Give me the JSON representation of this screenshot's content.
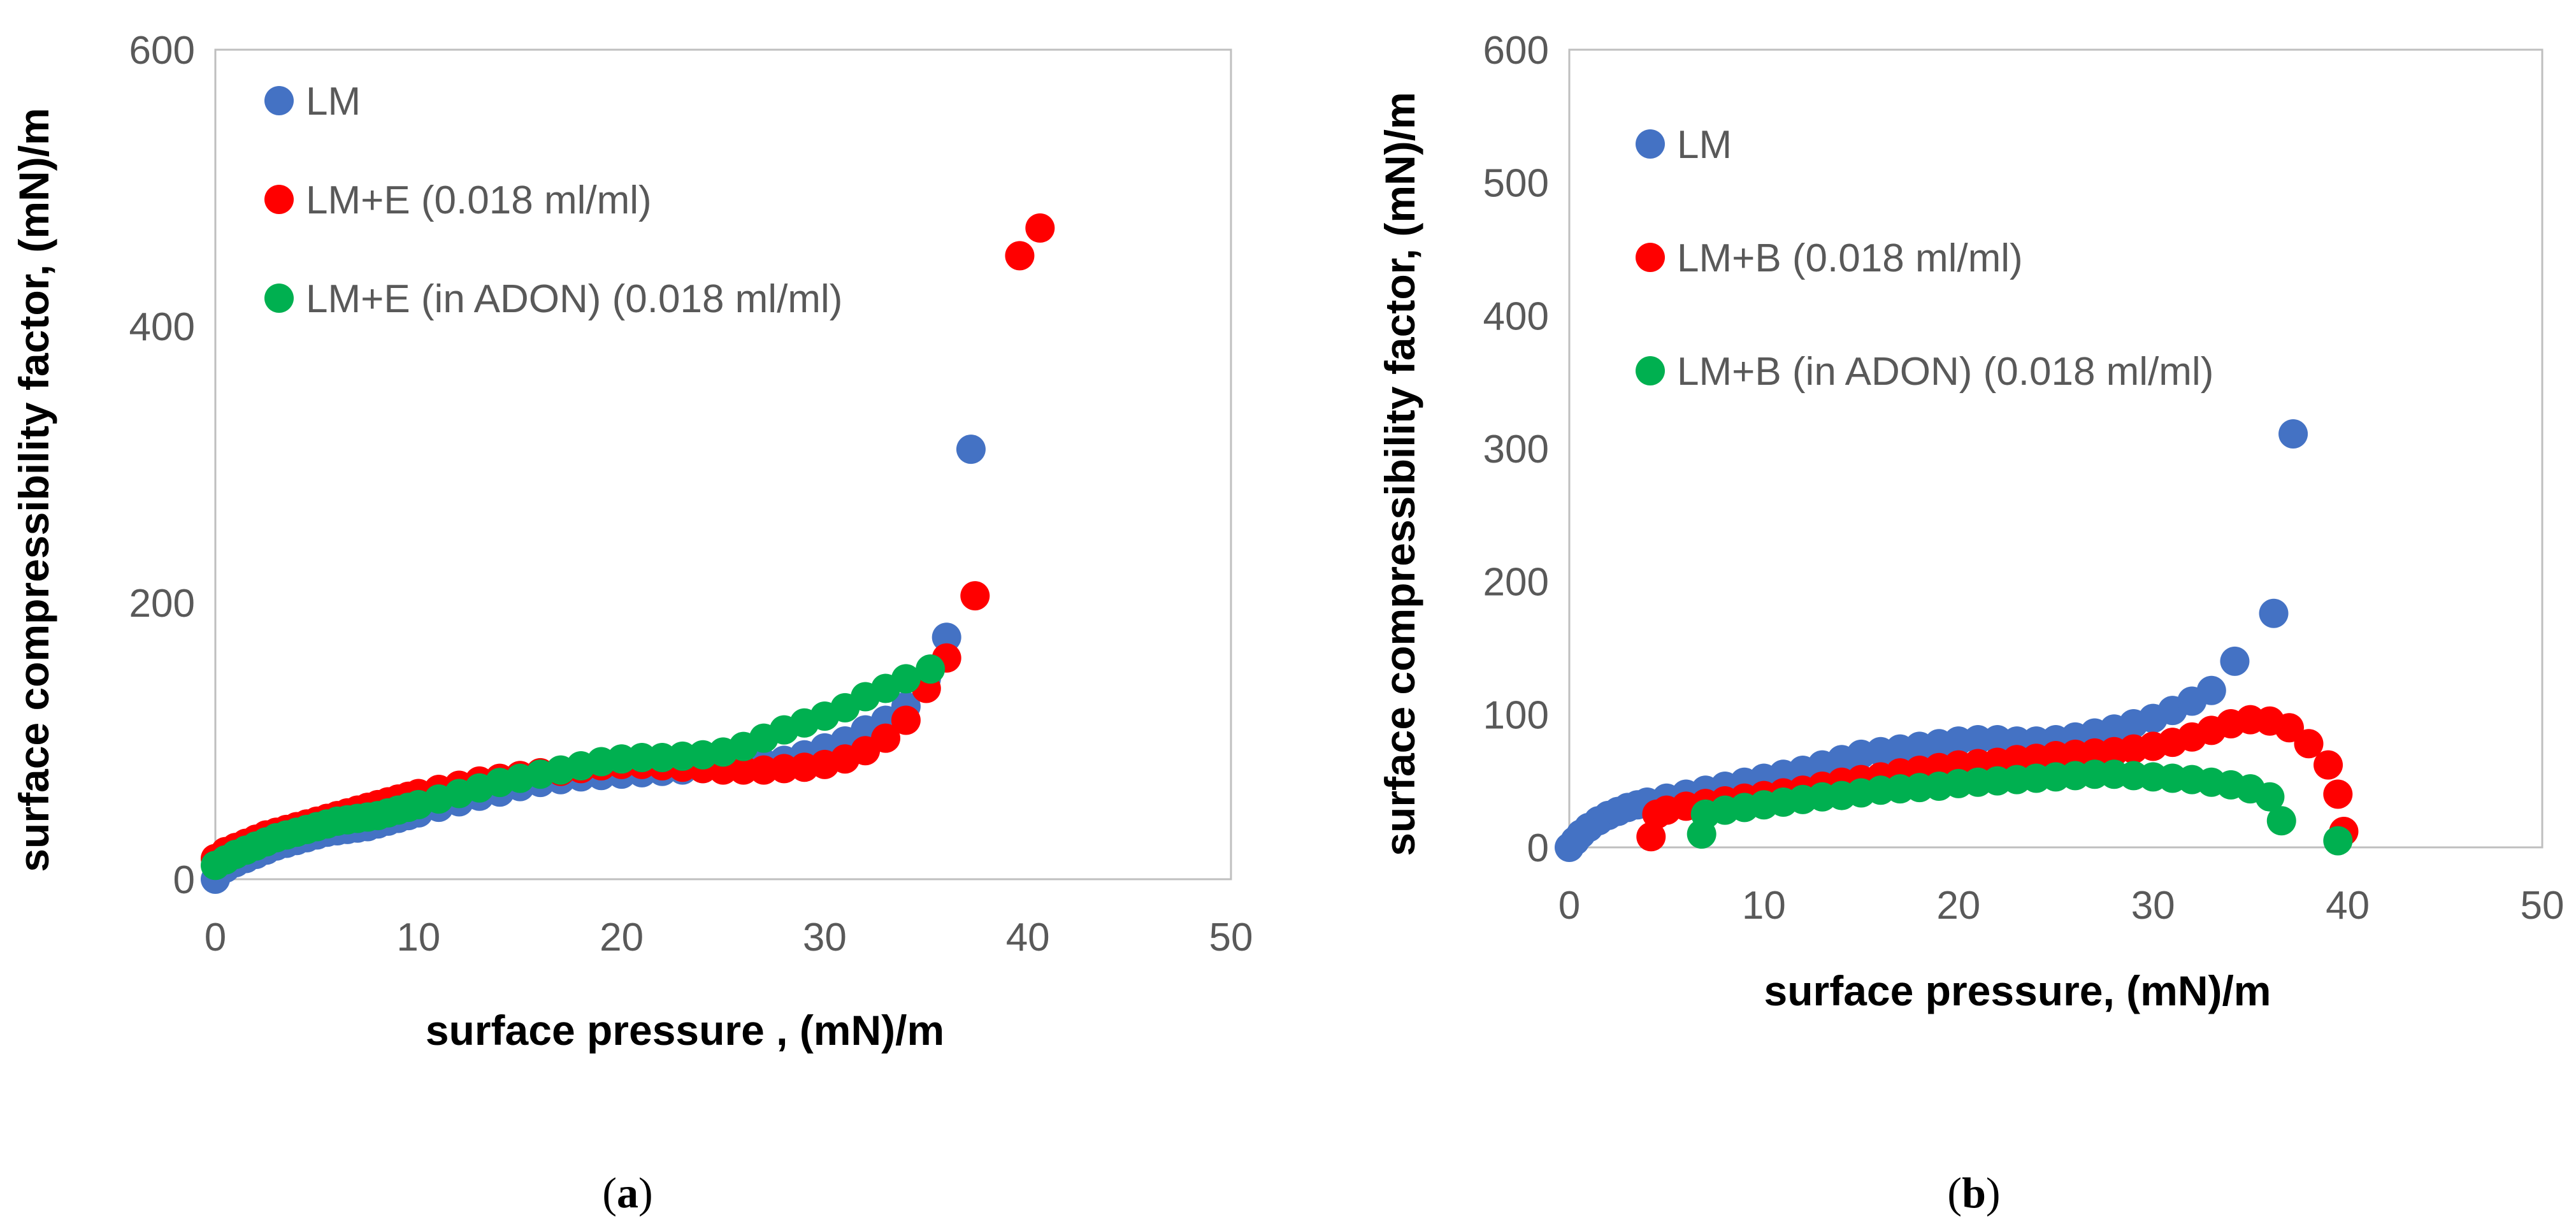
{
  "chart_data": [
    {
      "type": "scatter",
      "panel": "a",
      "caption": "a",
      "xlabel": "surface pressure , (mN)/m",
      "ylabel": "surface compressibility factor, (mN)/m",
      "xlim": [
        0,
        50
      ],
      "ylim": [
        0,
        600
      ],
      "xticks": [
        0,
        10,
        20,
        30,
        40,
        50
      ],
      "yticks": [
        0,
        200,
        400,
        600
      ],
      "legend_position": "top-left",
      "grid": false,
      "series": [
        {
          "name": "LM",
          "color": "#4472C4",
          "x": [
            0,
            0.5,
            1,
            1.5,
            2,
            2.5,
            3,
            3.5,
            4,
            4.5,
            5,
            5.5,
            6,
            6.5,
            7,
            7.5,
            8,
            8.5,
            9,
            9.5,
            10,
            11,
            12,
            13,
            14,
            15,
            16,
            17,
            18,
            19,
            20,
            21,
            22,
            23,
            24,
            25,
            26,
            27,
            28,
            29,
            30,
            31,
            32,
            33,
            34,
            35,
            36,
            37.2
          ],
          "y": [
            0,
            8,
            12,
            15,
            18,
            21,
            24,
            26,
            28,
            30,
            32,
            34,
            35,
            36,
            37,
            38,
            40,
            42,
            44,
            46,
            48,
            52,
            56,
            60,
            63,
            67,
            70,
            72,
            74,
            75,
            76,
            77,
            78,
            79,
            80,
            81,
            82,
            84,
            86,
            90,
            95,
            100,
            108,
            115,
            125,
            145,
            175,
            311
          ]
        },
        {
          "name": "LM+E (0.018 ml/ml)",
          "color": "#FF0000",
          "x": [
            0,
            0.5,
            1,
            1.5,
            2,
            2.5,
            3,
            3.5,
            4,
            4.5,
            5,
            5.5,
            6,
            6.5,
            7,
            7.5,
            8,
            8.5,
            9,
            9.5,
            10,
            11,
            12,
            13,
            14,
            15,
            16,
            17,
            18,
            19,
            20,
            21,
            22,
            23,
            24,
            25,
            26,
            27,
            28,
            29,
            30,
            31,
            32,
            33,
            34,
            35,
            36,
            37.4,
            39.6,
            40.6
          ],
          "y": [
            15,
            20,
            23,
            26,
            29,
            32,
            34,
            36,
            38,
            40,
            42,
            44,
            46,
            48,
            50,
            52,
            54,
            56,
            58,
            60,
            62,
            65,
            68,
            71,
            73,
            75,
            77,
            78,
            80,
            82,
            83,
            83,
            82,
            81,
            80,
            79,
            79,
            79,
            80,
            81,
            83,
            87,
            93,
            102,
            115,
            138,
            160,
            205,
            451,
            471
          ]
        },
        {
          "name": "LM+E (in ADON) (0.018 ml/ml)",
          "color": "#00B050",
          "x": [
            0,
            0.5,
            1,
            1.5,
            2,
            2.5,
            3,
            3.5,
            4,
            4.5,
            5,
            5.5,
            6,
            6.5,
            7,
            7.5,
            8,
            8.5,
            9,
            9.5,
            10,
            11,
            12,
            13,
            14,
            15,
            16,
            17,
            18,
            19,
            20,
            21,
            22,
            23,
            24,
            25,
            26,
            27,
            28,
            29,
            30,
            31,
            32,
            33,
            34,
            35.2
          ],
          "y": [
            10,
            14,
            18,
            21,
            24,
            27,
            30,
            32,
            34,
            36,
            38,
            40,
            42,
            43,
            44,
            45,
            46,
            48,
            50,
            52,
            54,
            58,
            62,
            66,
            70,
            73,
            76,
            79,
            82,
            85,
            87,
            88,
            88,
            89,
            90,
            92,
            96,
            102,
            108,
            113,
            118,
            124,
            132,
            138,
            145,
            152
          ]
        }
      ]
    },
    {
      "type": "scatter",
      "panel": "b",
      "caption": "b",
      "xlabel": "surface pressure, (mN)/m",
      "ylabel": "surface compressibility factor, (mN)/m",
      "xlim": [
        0,
        50
      ],
      "ylim": [
        0,
        600
      ],
      "xticks": [
        0,
        10,
        20,
        30,
        40,
        50
      ],
      "yticks": [
        0,
        100,
        200,
        300,
        400,
        500,
        600
      ],
      "legend_position": "top-left",
      "grid": false,
      "series": [
        {
          "name": "LM",
          "color": "#4472C4",
          "x": [
            0,
            0.3,
            0.6,
            1,
            1.5,
            2,
            2.5,
            3,
            3.5,
            4,
            5,
            6,
            7,
            8,
            9,
            10,
            11,
            12,
            13,
            14,
            15,
            16,
            17,
            18,
            19,
            20,
            21,
            22,
            23,
            24,
            25,
            26,
            27,
            28,
            29,
            30,
            31,
            32,
            33,
            34.2,
            36.2,
            37.2
          ],
          "y": [
            0,
            5,
            10,
            15,
            20,
            24,
            27,
            30,
            32,
            34,
            37,
            40,
            43,
            46,
            49,
            52,
            55,
            58,
            62,
            66,
            70,
            72,
            74,
            76,
            78,
            80,
            81,
            81,
            80,
            80,
            81,
            83,
            86,
            89,
            93,
            97,
            103,
            110,
            118,
            140,
            176,
            311
          ]
        },
        {
          "name": "LM+B (0.018 ml/ml)",
          "color": "#FF0000",
          "x": [
            4.2,
            4.5,
            5,
            6,
            7,
            8,
            9,
            10,
            11,
            12,
            13,
            14,
            15,
            16,
            17,
            18,
            19,
            20,
            21,
            22,
            23,
            24,
            25,
            26,
            27,
            28,
            29,
            30,
            31,
            32,
            33,
            34,
            35,
            36,
            37,
            38,
            39,
            39.5,
            39.8
          ],
          "y": [
            8,
            25,
            28,
            31,
            33,
            35,
            37,
            39,
            41,
            43,
            46,
            49,
            51,
            53,
            56,
            58,
            60,
            62,
            63,
            64,
            66,
            67,
            69,
            70,
            71,
            72,
            74,
            76,
            79,
            83,
            88,
            93,
            96,
            95,
            90,
            78,
            62,
            40,
            12
          ]
        },
        {
          "name": "LM+B (in ADON) (0.018 ml/ml)",
          "color": "#00B050",
          "x": [
            6.8,
            7,
            8,
            9,
            10,
            11,
            12,
            13,
            14,
            15,
            16,
            17,
            18,
            19,
            20,
            21,
            22,
            23,
            24,
            25,
            26,
            27,
            28,
            29,
            30,
            31,
            32,
            33,
            34,
            35,
            36,
            36.6,
            39.5
          ],
          "y": [
            10,
            25,
            28,
            30,
            32,
            34,
            36,
            38,
            39,
            41,
            43,
            44,
            45,
            46,
            48,
            49,
            50,
            51,
            52,
            53,
            54,
            55,
            55,
            54,
            53,
            52,
            51,
            49,
            47,
            44,
            38,
            20,
            5
          ]
        }
      ]
    }
  ]
}
